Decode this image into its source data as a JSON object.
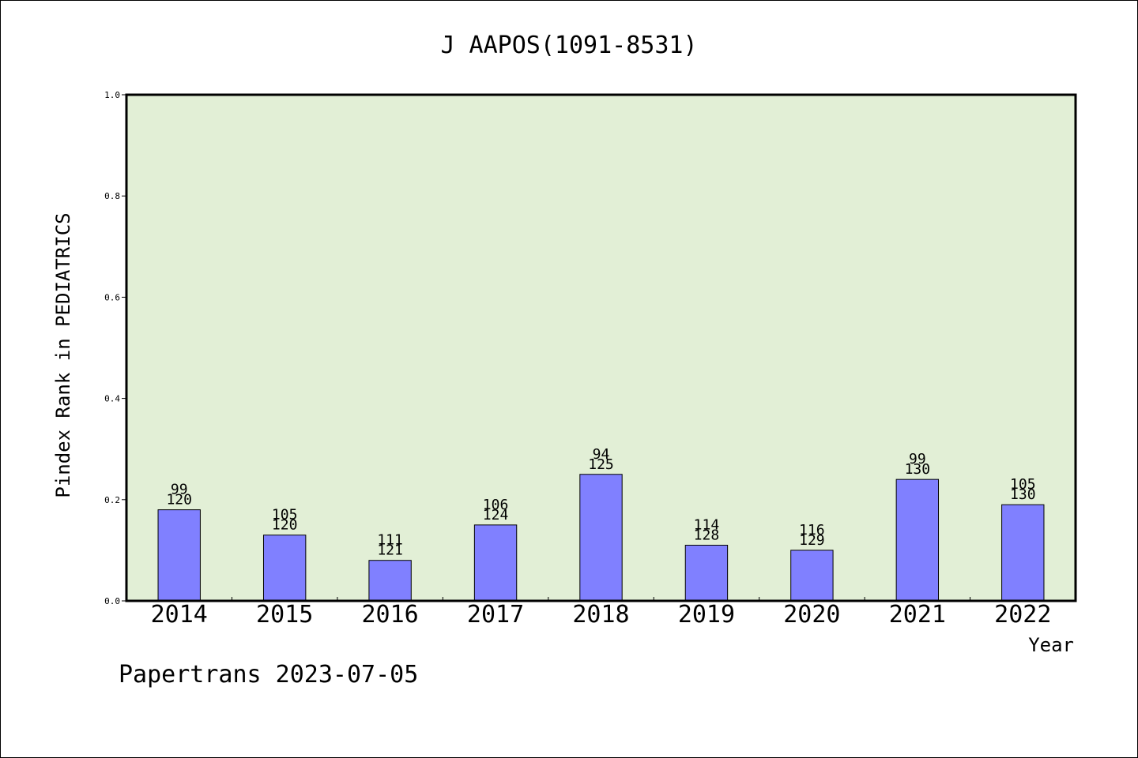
{
  "chart_data": {
    "type": "bar",
    "title": "J AAPOS(1091-8531)",
    "xlabel": "Year",
    "ylabel": "Pindex Rank in PEDIATRICS",
    "ylim": [
      0.0,
      1.0
    ],
    "yticks": [
      "0.0",
      "0.2",
      "0.4",
      "0.6",
      "0.8",
      "1.0"
    ],
    "categories": [
      "2014",
      "2015",
      "2016",
      "2017",
      "2018",
      "2019",
      "2020",
      "2021",
      "2022"
    ],
    "values": [
      0.18,
      0.13,
      0.08,
      0.15,
      0.25,
      0.11,
      0.1,
      0.24,
      0.19
    ],
    "rank": [
      "99",
      "105",
      "111",
      "106",
      "94",
      "114",
      "116",
      "99",
      "105"
    ],
    "total": [
      "120",
      "120",
      "121",
      "124",
      "125",
      "128",
      "129",
      "130",
      "130"
    ],
    "grid": false,
    "legend": "none",
    "colors": {
      "plot_background": "#e2efd6",
      "bar_fill": "#8080ff",
      "bar_edge": "#000000"
    }
  },
  "footer": "Papertrans 2023-07-05"
}
